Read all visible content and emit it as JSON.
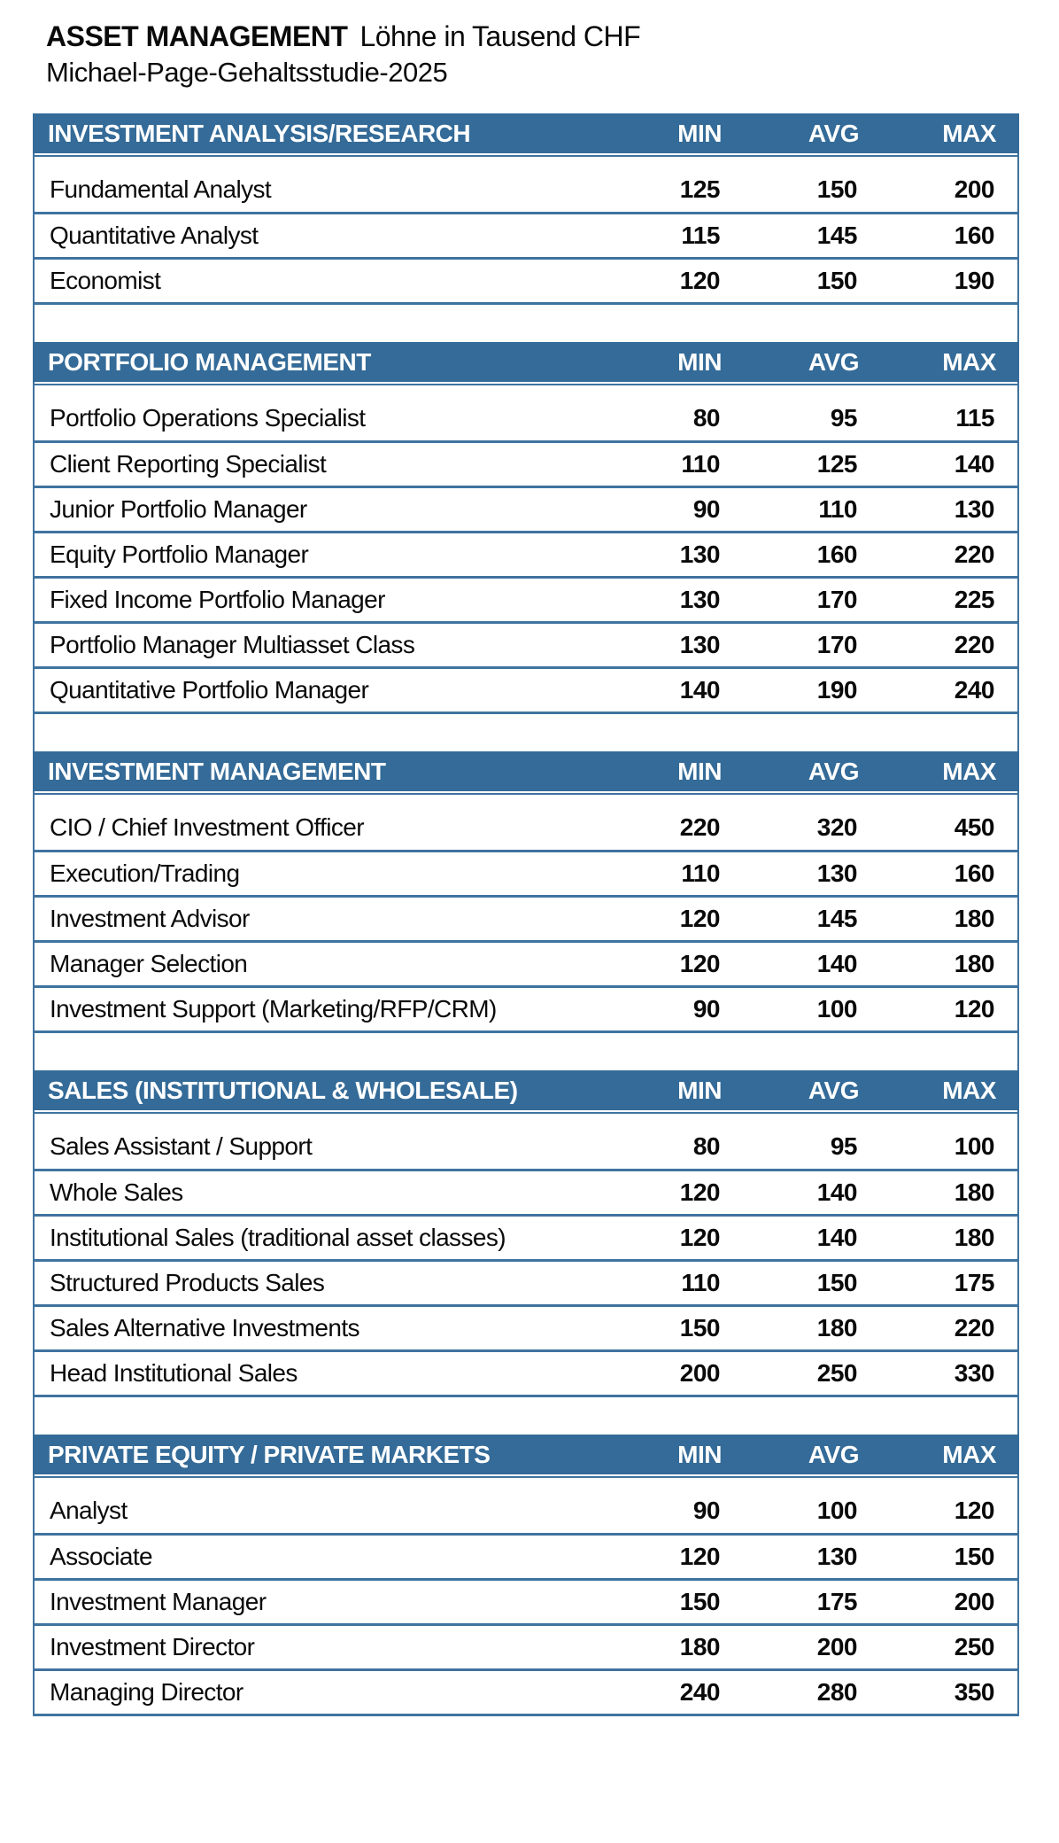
{
  "page": {
    "title_main": "ASSET MANAGEMENT",
    "title_sub_label": "Löhne in Tausend CHF",
    "subtitle": "Michael-Page-Gehaltsstudie-2025"
  },
  "columns": [
    "MIN",
    "AVG",
    "MAX"
  ],
  "colors": {
    "header_bg": "#346B98",
    "row_divider": "#3F739F",
    "header_text": "#FFFFFF",
    "body_text": "#0A0A0A"
  },
  "sections": [
    {
      "title": "INVESTMENT ANALYSIS/RESEARCH",
      "rows": [
        {
          "label": "Fundamental Analyst",
          "min": "125",
          "avg": "150",
          "max": "200"
        },
        {
          "label": "Quantitative Analyst",
          "min": "115",
          "avg": "145",
          "max": "160"
        },
        {
          "label": "Economist",
          "min": "120",
          "avg": "150",
          "max": "190"
        }
      ]
    },
    {
      "title": "PORTFOLIO MANAGEMENT",
      "rows": [
        {
          "label": "Portfolio Operations Specialist",
          "min": "80",
          "avg": "95",
          "max": "115"
        },
        {
          "label": "Client Reporting Specialist",
          "min": "110",
          "avg": "125",
          "max": "140"
        },
        {
          "label": "Junior Portfolio Manager",
          "min": "90",
          "avg": "110",
          "max": "130"
        },
        {
          "label": "Equity Portfolio Manager",
          "min": "130",
          "avg": "160",
          "max": "220"
        },
        {
          "label": "Fixed Income Portfolio Manager",
          "min": "130",
          "avg": "170",
          "max": "225"
        },
        {
          "label": "Portfolio Manager Multiasset Class",
          "min": "130",
          "avg": "170",
          "max": "220"
        },
        {
          "label": "Quantitative Portfolio Manager",
          "min": "140",
          "avg": "190",
          "max": "240"
        }
      ]
    },
    {
      "title": "INVESTMENT MANAGEMENT",
      "rows": [
        {
          "label": "CIO / Chief Investment Officer",
          "min": "220",
          "avg": "320",
          "max": "450"
        },
        {
          "label": "Execution/Trading",
          "min": "110",
          "avg": "130",
          "max": "160"
        },
        {
          "label": "Investment Advisor",
          "min": "120",
          "avg": "145",
          "max": "180"
        },
        {
          "label": "Manager Selection",
          "min": "120",
          "avg": "140",
          "max": "180"
        },
        {
          "label": "Investment Support (Marketing/RFP/CRM)",
          "min": "90",
          "avg": "100",
          "max": "120"
        }
      ]
    },
    {
      "title": "SALES (INSTITUTIONAL & WHOLESALE)",
      "rows": [
        {
          "label": "Sales Assistant / Support",
          "min": "80",
          "avg": "95",
          "max": "100"
        },
        {
          "label": "Whole Sales",
          "min": "120",
          "avg": "140",
          "max": "180"
        },
        {
          "label": "Institutional Sales (traditional asset classes)",
          "min": "120",
          "avg": "140",
          "max": "180"
        },
        {
          "label": "Structured Products Sales",
          "min": "110",
          "avg": "150",
          "max": "175"
        },
        {
          "label": "Sales Alternative Investments",
          "min": "150",
          "avg": "180",
          "max": "220"
        },
        {
          "label": "Head Institutional Sales",
          "min": "200",
          "avg": "250",
          "max": "330"
        }
      ]
    },
    {
      "title": "PRIVATE EQUITY / PRIVATE MARKETS",
      "rows": [
        {
          "label": "Analyst",
          "min": "90",
          "avg": "100",
          "max": "120"
        },
        {
          "label": "Associate",
          "min": "120",
          "avg": "130",
          "max": "150"
        },
        {
          "label": "Investment Manager",
          "min": "150",
          "avg": "175",
          "max": "200"
        },
        {
          "label": "Investment Director",
          "min": "180",
          "avg": "200",
          "max": "250"
        },
        {
          "label": "Managing Director",
          "min": "240",
          "avg": "280",
          "max": "350"
        }
      ]
    }
  ]
}
